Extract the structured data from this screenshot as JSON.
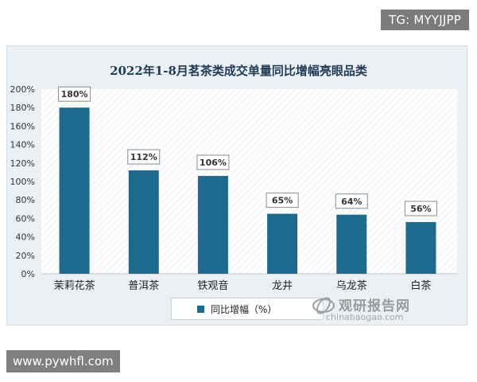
{
  "watermarks": {
    "top_right": "TG: MYYJJPP",
    "bottom_left": "www.pywhfl.com"
  },
  "source": {
    "name_cn": "观研报告网",
    "url": "chinabaogao.com"
  },
  "colors": {
    "bar": "#1d6a8f",
    "panel": "#eaf0f4",
    "title": "#1f3b55"
  },
  "chart_data": {
    "type": "bar",
    "title": "2022年1-8月茗茶类成交单量同比增幅亮眼品类",
    "categories": [
      "茉莉花茶",
      "普洱茶",
      "铁观音",
      "龙井",
      "乌龙茶",
      "白茶"
    ],
    "series": [
      {
        "name": "同比增幅（%）",
        "values": [
          180,
          112,
          106,
          65,
          64,
          56
        ],
        "labels": [
          "180%",
          "112%",
          "106%",
          "65%",
          "64%",
          "56%"
        ]
      }
    ],
    "y_ticks": [
      "0%",
      "20%",
      "40%",
      "60%",
      "80%",
      "100%",
      "120%",
      "140%",
      "160%",
      "180%",
      "200%"
    ],
    "ylim": [
      0,
      200
    ],
    "grid": false,
    "legend": "bottom-center"
  }
}
